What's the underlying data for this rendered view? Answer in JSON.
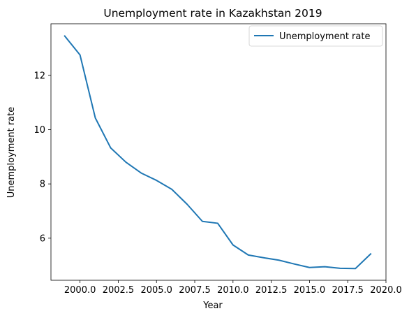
{
  "chart_data": {
    "type": "line",
    "title": "Unemployment rate in Kazakhstan 2019",
    "xlabel": "Year",
    "ylabel": "Unemployment rate",
    "xlim": [
      1998.1,
      2020.0
    ],
    "ylim": [
      4.45,
      13.9
    ],
    "xticks": [
      2000.0,
      2002.5,
      2005.0,
      2007.5,
      2010.0,
      2012.5,
      2015.0,
      2017.5,
      2020.0
    ],
    "xtick_labels": [
      "2000.0",
      "2002.5",
      "2005.0",
      "2007.5",
      "2010.0",
      "2012.5",
      "2015.0",
      "2017.5",
      "2020.0"
    ],
    "yticks": [
      6,
      8,
      10,
      12
    ],
    "ytick_labels": [
      "6",
      "8",
      "10",
      "12"
    ],
    "grid": false,
    "legend_position": "top-right",
    "series": [
      {
        "name": "Unemployment rate",
        "color": "#1f77b4",
        "x": [
          1999,
          2000,
          2001,
          2002,
          2003,
          2004,
          2005,
          2006,
          2007,
          2008,
          2009,
          2010,
          2011,
          2012,
          2013,
          2014,
          2015,
          2016,
          2017,
          2018,
          2019
        ],
        "y": [
          13.45,
          12.75,
          10.43,
          9.33,
          8.8,
          8.4,
          8.13,
          7.8,
          7.25,
          6.62,
          6.55,
          5.75,
          5.38,
          5.28,
          5.19,
          5.05,
          4.92,
          4.95,
          4.89,
          4.88,
          5.42
        ]
      }
    ]
  }
}
